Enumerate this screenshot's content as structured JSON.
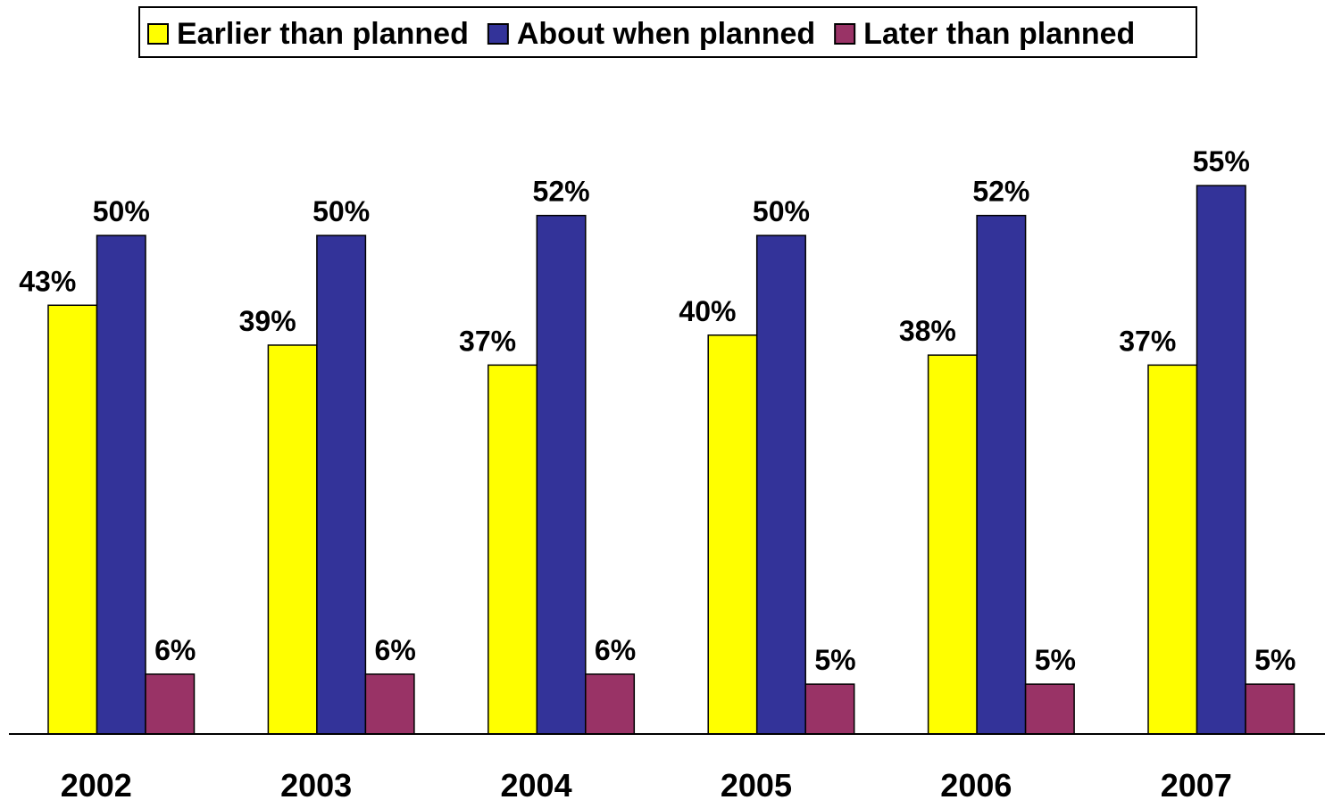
{
  "chart_data": {
    "type": "bar",
    "title": "",
    "xlabel": "",
    "ylabel": "",
    "ylim": [
      0,
      60
    ],
    "grid": false,
    "legend_position": "top-center",
    "value_suffix": "%",
    "categories": [
      "2002",
      "2003",
      "2004",
      "2005",
      "2006",
      "2007"
    ],
    "series": [
      {
        "name": "Earlier than planned",
        "color": "#ffff00",
        "values": [
          43,
          39,
          37,
          40,
          38,
          37
        ]
      },
      {
        "name": "About when planned",
        "color": "#333399",
        "values": [
          50,
          50,
          52,
          50,
          52,
          55
        ]
      },
      {
        "name": "Later than planned",
        "color": "#993366",
        "values": [
          6,
          6,
          6,
          5,
          5,
          5
        ]
      }
    ]
  }
}
